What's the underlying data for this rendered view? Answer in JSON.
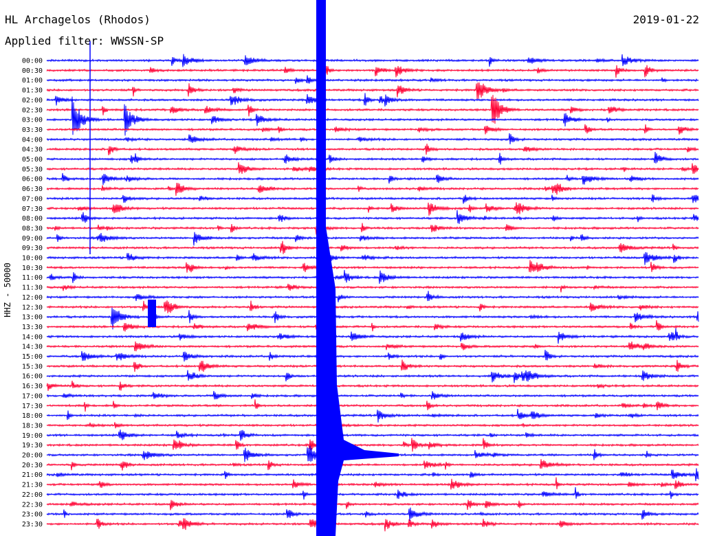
{
  "header": {
    "station": "HL Archagelos (Rhodos)",
    "date": "2019-01-22",
    "filter": "Applied filter: WWSSN-SP"
  },
  "chart_data": {
    "type": "line",
    "title": "HL Archagelos (Rhodos)",
    "ylabel": "HHZ - 50000",
    "series_colors": [
      "#0000ff",
      "#ff0033"
    ],
    "rows": [
      {
        "time": "00:00"
      },
      {
        "time": "00:30"
      },
      {
        "time": "01:00"
      },
      {
        "time": "01:30"
      },
      {
        "time": "02:00"
      },
      {
        "time": "02:30"
      },
      {
        "time": "03:00"
      },
      {
        "time": "03:30"
      },
      {
        "time": "04:00"
      },
      {
        "time": "04:30"
      },
      {
        "time": "05:00"
      },
      {
        "time": "05:30"
      },
      {
        "time": "06:00"
      },
      {
        "time": "06:30"
      },
      {
        "time": "07:00"
      },
      {
        "time": "07:30"
      },
      {
        "time": "08:00"
      },
      {
        "time": "08:30"
      },
      {
        "time": "09:00"
      },
      {
        "time": "09:30"
      },
      {
        "time": "10:00"
      },
      {
        "time": "10:30"
      },
      {
        "time": "11:00"
      },
      {
        "time": "11:30"
      },
      {
        "time": "12:00"
      },
      {
        "time": "12:30"
      },
      {
        "time": "13:00"
      },
      {
        "time": "13:30"
      },
      {
        "time": "14:00"
      },
      {
        "time": "14:30"
      },
      {
        "time": "15:00"
      },
      {
        "time": "15:30"
      },
      {
        "time": "16:00"
      },
      {
        "time": "16:30"
      },
      {
        "time": "17:00"
      },
      {
        "time": "17:30"
      },
      {
        "time": "18:00"
      },
      {
        "time": "18:30"
      },
      {
        "time": "19:00"
      },
      {
        "time": "19:30"
      },
      {
        "time": "20:00"
      },
      {
        "time": "20:30"
      },
      {
        "time": "21:00"
      },
      {
        "time": "21:30"
      },
      {
        "time": "22:00"
      },
      {
        "time": "22:30"
      },
      {
        "time": "23:00"
      },
      {
        "time": "23:30"
      }
    ],
    "x_minutes_per_row": 30,
    "events": [
      {
        "row": 6,
        "minute": 1.2,
        "amp": 3.0
      },
      {
        "row": 5,
        "minute": 20.5,
        "amp": 2.5
      },
      {
        "row": 6,
        "minute": 3.6,
        "amp": 2.0
      },
      {
        "row": 3,
        "minute": 19.8,
        "amp": 1.8
      },
      {
        "row": 26,
        "minute": 3.0,
        "amp": 1.8
      },
      {
        "row": 40,
        "minute": 12.0,
        "amp": 1.5
      }
    ]
  }
}
